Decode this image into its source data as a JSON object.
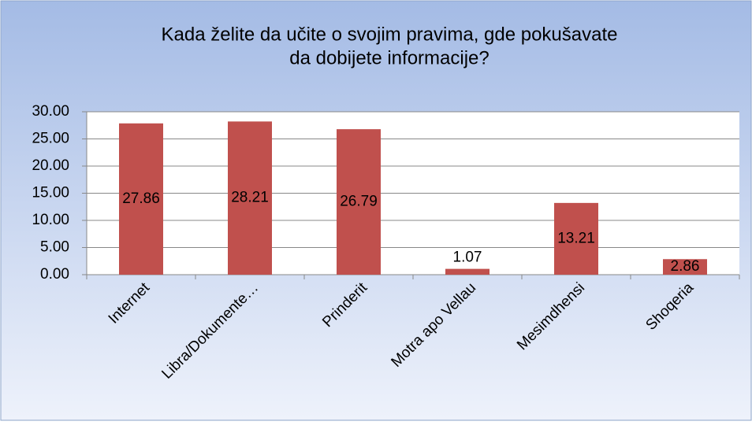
{
  "chart_data": {
    "type": "bar",
    "title": [
      "Kada želite da učite o svojim pravima, gde pokušavate",
      "da dobijete informacije?"
    ],
    "categories": [
      "Internet",
      "Libra/Dokumente…",
      "Prinderit",
      "Motra apo Vellau",
      "Mesimdhensi",
      "Shoqeria"
    ],
    "values": [
      27.86,
      28.21,
      26.79,
      1.07,
      13.21,
      2.86
    ],
    "color": "#c0504d",
    "ylim": [
      0,
      30
    ],
    "yticks": [
      {
        "value": 0,
        "label": "0.00"
      },
      {
        "value": 5,
        "label": "5.00"
      },
      {
        "value": 10,
        "label": "10.00"
      },
      {
        "value": 15,
        "label": "15.00"
      },
      {
        "value": 20,
        "label": "20.00"
      },
      {
        "value": 25,
        "label": "25.00"
      },
      {
        "value": 30,
        "label": "30.00"
      }
    ],
    "grid": true
  }
}
